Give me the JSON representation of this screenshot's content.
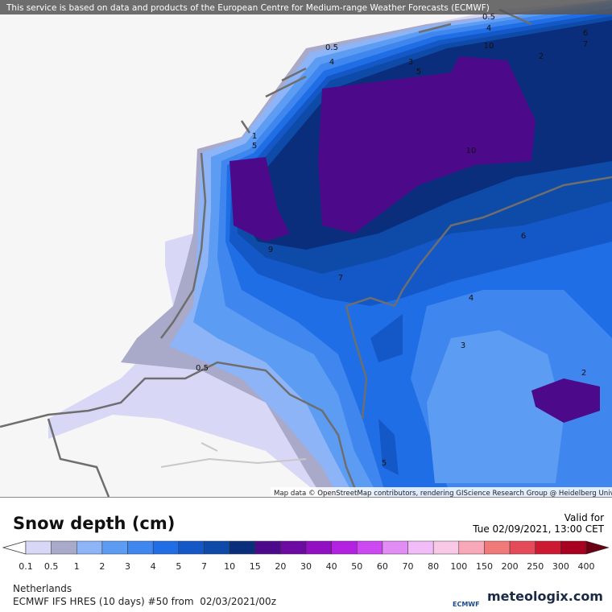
{
  "header": {
    "notice": "This service is based on data and products of the European Centre for Medium-range Weather Forecasts (ECMWF)"
  },
  "map": {
    "attribution": "Map data © OpenStreetMap contributors, rendering GIScience Research Group @ Heidelberg University",
    "contour_labels": [
      0.5,
      4,
      3,
      5,
      0.5,
      4,
      10,
      2,
      6,
      7,
      1,
      5,
      10,
      9,
      7,
      6,
      4,
      3,
      0.5,
      2,
      5
    ]
  },
  "title": "Snow depth (cm)",
  "valid": {
    "label": "Valid for",
    "time": "Tue 02/09/2021, 13:00 CET"
  },
  "legend": {
    "labels": [
      0.1,
      0.5,
      1,
      2,
      3,
      4,
      5,
      7,
      10,
      15,
      20,
      30,
      40,
      50,
      60,
      70,
      80,
      100,
      150,
      200,
      250,
      300,
      400
    ],
    "colors": [
      "#d8d8f6",
      "#a9a9c9",
      "#8cb4f6",
      "#5c9cf2",
      "#3f86ee",
      "#1f6ee6",
      "#1458c8",
      "#0e4aa8",
      "#0b2e7c",
      "#4c0a8a",
      "#6c0aa2",
      "#9010c2",
      "#b222e0",
      "#cc48f0",
      "#e28cf6",
      "#f2bcf8",
      "#f8c8e6",
      "#f8a8b8",
      "#f07a7a",
      "#e44a5a",
      "#cc1a32",
      "#a80020",
      "#6a0014"
    ]
  },
  "footer": {
    "region": "Netherlands",
    "model": "ECMWF IFS HRES (10 days) #50 from  02/03/2021/00z",
    "logo_small": "ECMWF",
    "brand": "meteologix.com"
  }
}
